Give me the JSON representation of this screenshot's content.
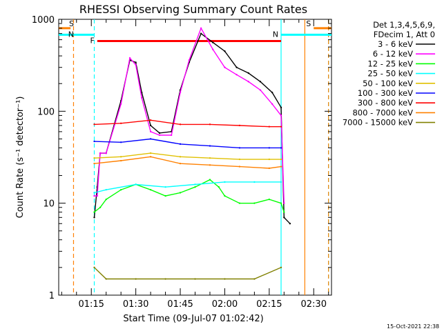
{
  "chart_data": {
    "type": "line",
    "title": "RHESSI Observing Summary Count Rates",
    "xlabel": "Start Time (09-Jul-07 01:02:42)",
    "ylabel": "Count Rate (s⁻¹ detector⁻¹)",
    "y_scale": "log",
    "ylim": [
      1,
      1000
    ],
    "xlim": [
      "01:04",
      "02:36"
    ],
    "x_ticks": [
      "01:15",
      "01:30",
      "01:45",
      "02:00",
      "02:15",
      "02:30"
    ],
    "y_ticks": [
      "1",
      "10",
      "100",
      "1000"
    ],
    "legend_position": "top-right",
    "legend_header": [
      "Det 1,3,4,5,6,9,",
      "FDecim 1, Att 0"
    ],
    "footer_timestamp": "15-Oct-2021 22:38",
    "series": [
      {
        "name": "3 - 6 keV",
        "color": "#000000",
        "x": [
          "01:16",
          "01:17",
          "01:18",
          "01:20",
          "01:25",
          "01:28",
          "01:30",
          "01:32",
          "01:35",
          "01:38",
          "01:42",
          "01:45",
          "01:48",
          "01:52",
          "01:56",
          "02:00",
          "02:04",
          "02:08",
          "02:12",
          "02:16",
          "02:19",
          "02:20",
          "02:22"
        ],
        "values": [
          7,
          15,
          35,
          35,
          130,
          360,
          340,
          160,
          70,
          58,
          60,
          170,
          340,
          700,
          560,
          450,
          300,
          260,
          210,
          160,
          110,
          7,
          6
        ]
      },
      {
        "name": "6 - 12 keV",
        "color": "#ff00ff",
        "x": [
          "01:16",
          "01:17",
          "01:18",
          "01:20",
          "01:25",
          "01:28",
          "01:30",
          "01:32",
          "01:35",
          "01:38",
          "01:42",
          "01:45",
          "01:48",
          "01:52",
          "01:56",
          "02:00",
          "02:04",
          "02:08",
          "02:12",
          "02:16",
          "02:19",
          "02:20"
        ],
        "values": [
          12,
          12,
          35,
          35,
          120,
          380,
          320,
          140,
          60,
          55,
          55,
          160,
          360,
          800,
          470,
          300,
          250,
          210,
          170,
          120,
          90,
          10
        ]
      },
      {
        "name": "12 - 25 keV",
        "color": "#00ff00",
        "x": [
          "01:16",
          "01:18",
          "01:20",
          "01:25",
          "01:30",
          "01:35",
          "01:40",
          "01:45",
          "01:50",
          "01:55",
          "01:58",
          "02:00",
          "02:05",
          "02:10",
          "02:15",
          "02:19",
          "02:20"
        ],
        "values": [
          8,
          9,
          11,
          14,
          16,
          14,
          12,
          13,
          15,
          18,
          15,
          12,
          10,
          10,
          11,
          10,
          8
        ]
      },
      {
        "name": "25 - 50 keV",
        "color": "#00ffff",
        "x": [
          "01:16",
          "01:20",
          "01:30",
          "01:40",
          "01:50",
          "02:00",
          "02:10",
          "02:19"
        ],
        "values": [
          13,
          14,
          16,
          15,
          16,
          17,
          17,
          17
        ]
      },
      {
        "name": "50 - 100 keV",
        "color": "#e0c000",
        "x": [
          "01:16",
          "01:25",
          "01:35",
          "01:45",
          "01:55",
          "02:05",
          "02:15",
          "02:19"
        ],
        "values": [
          31,
          32,
          35,
          32,
          31,
          30,
          30,
          30
        ]
      },
      {
        "name": "100 - 300 keV",
        "color": "#0000ff",
        "x": [
          "01:16",
          "01:25",
          "01:35",
          "01:45",
          "01:55",
          "02:05",
          "02:15",
          "02:19"
        ],
        "values": [
          47,
          46,
          50,
          44,
          42,
          40,
          40,
          40
        ]
      },
      {
        "name": "300 - 800 keV",
        "color": "#ff0000",
        "x": [
          "01:16",
          "01:25",
          "01:35",
          "01:45",
          "01:55",
          "02:05",
          "02:15",
          "02:19"
        ],
        "values": [
          72,
          74,
          80,
          72,
          72,
          70,
          68,
          68
        ]
      },
      {
        "name": "800 - 7000 keV",
        "color": "#ff8000",
        "x": [
          "01:16",
          "01:25",
          "01:35",
          "01:45",
          "01:55",
          "02:05",
          "02:15",
          "02:19"
        ],
        "values": [
          27,
          29,
          32,
          27,
          26,
          25,
          24,
          25
        ]
      },
      {
        "name": "7000 - 15000 keV",
        "color": "#808000",
        "x": [
          "01:16",
          "01:20",
          "01:30",
          "01:40",
          "01:50",
          "02:00",
          "02:10",
          "02:19"
        ],
        "values": [
          2,
          1.5,
          1.5,
          1.5,
          1.5,
          1.5,
          1.5,
          2
        ]
      }
    ],
    "markers": [
      {
        "label": "S",
        "color": "#ff8000",
        "type": "segment",
        "x_start": "01:04",
        "x_end": "01:08",
        "value": 800
      },
      {
        "label": "S",
        "color": "#ff8000",
        "type": "segment",
        "x_start": "02:30",
        "x_end": "02:36",
        "value": 800
      },
      {
        "label": "N",
        "color": "#00ffff",
        "type": "segment",
        "x_start": "01:04",
        "x_end": "01:16",
        "value": 680
      },
      {
        "label": "N",
        "color": "#00ffff",
        "type": "segment",
        "x_start": "02:19",
        "x_end": "02:36",
        "value": 680
      },
      {
        "label": "F",
        "color": "#ff0000",
        "type": "segment",
        "x_start": "01:17",
        "x_end": "02:19",
        "value": 580
      }
    ],
    "vlines": [
      {
        "x": "01:09",
        "color": "#ff8000",
        "style": "dashed"
      },
      {
        "x": "01:16",
        "color": "#00ffff",
        "style": "dashed"
      },
      {
        "x": "02:19",
        "color": "#00ffff",
        "style": "solid"
      },
      {
        "x": "02:27",
        "color": "#ff8000",
        "style": "solid"
      },
      {
        "x": "02:35",
        "color": "#00ffff",
        "style": "dashed"
      },
      {
        "x": "02:35",
        "color": "#ff8000",
        "style": "dashed"
      }
    ]
  }
}
